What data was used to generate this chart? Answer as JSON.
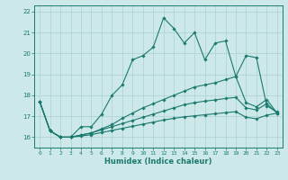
{
  "xlabel": "Humidex (Indice chaleur)",
  "background_color": "#cce8e8",
  "grid_color": "#aad0d0",
  "line_color": "#1a7a6e",
  "xlim": [
    -0.5,
    23.5
  ],
  "ylim": [
    15.5,
    22.3
  ],
  "xticks": [
    0,
    1,
    2,
    3,
    4,
    5,
    6,
    7,
    8,
    9,
    10,
    11,
    12,
    13,
    14,
    15,
    16,
    17,
    18,
    19,
    20,
    21,
    22,
    23
  ],
  "yticks": [
    16,
    17,
    18,
    19,
    20,
    21,
    22
  ],
  "series": [
    [
      17.7,
      16.3,
      16.0,
      16.0,
      16.5,
      16.5,
      17.1,
      18.0,
      18.5,
      19.7,
      19.9,
      20.3,
      21.7,
      21.2,
      20.5,
      21.0,
      19.7,
      20.5,
      20.6,
      18.9,
      19.9,
      19.8,
      17.5,
      17.2
    ],
    [
      17.7,
      16.3,
      16.0,
      16.0,
      16.1,
      16.2,
      16.4,
      16.6,
      16.9,
      17.15,
      17.4,
      17.6,
      17.8,
      18.0,
      18.2,
      18.4,
      18.5,
      18.6,
      18.75,
      18.9,
      17.65,
      17.45,
      17.8,
      17.15
    ],
    [
      17.7,
      16.3,
      16.0,
      16.0,
      16.1,
      16.2,
      16.35,
      16.5,
      16.65,
      16.8,
      16.95,
      17.1,
      17.25,
      17.4,
      17.55,
      17.65,
      17.72,
      17.78,
      17.85,
      17.9,
      17.4,
      17.3,
      17.6,
      17.15
    ],
    [
      17.7,
      16.3,
      16.0,
      16.0,
      16.05,
      16.12,
      16.22,
      16.32,
      16.42,
      16.52,
      16.62,
      16.72,
      16.82,
      16.9,
      16.97,
      17.02,
      17.07,
      17.12,
      17.17,
      17.22,
      16.95,
      16.88,
      17.05,
      17.15
    ]
  ]
}
